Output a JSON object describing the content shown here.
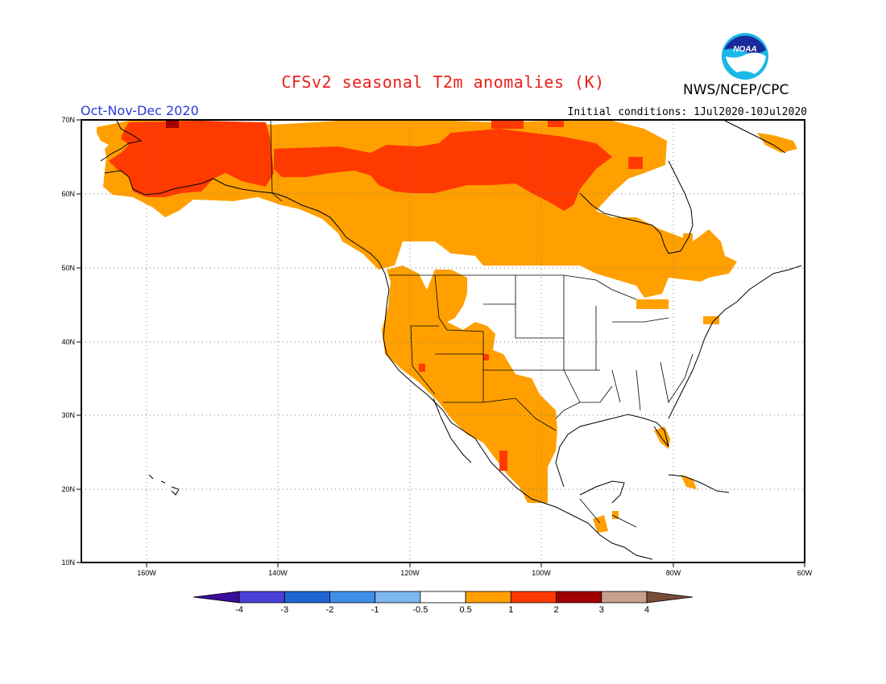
{
  "title": "CFSv2 seasonal T2m anomalies (K)",
  "organization": "NWS/NCEP/CPC",
  "logo_text": "NOAA",
  "season": "Oct-Nov-Dec 2020",
  "initial_conditions": "Initial conditions: 1Jul2020-10Jul2020",
  "map": {
    "lon_range": [
      -172,
      -60
    ],
    "lat_range": [
      10,
      70
    ],
    "grid": true,
    "lat_labels": [
      "70N",
      "60N",
      "50N",
      "40N",
      "30N",
      "20N",
      "10N"
    ],
    "lon_labels": [
      "160W",
      "140W",
      "120W",
      "100W",
      "80W",
      "60W"
    ]
  },
  "colorbar": {
    "labels": [
      "-4",
      "-3",
      "-2",
      "-1",
      "-0.5",
      "0.5",
      "1",
      "2",
      "3",
      "4"
    ],
    "colors": [
      "#3a0d9b",
      "#4a3fd6",
      "#1f66d4",
      "#3f8ee8",
      "#7db7ef",
      "#ffffff",
      "#ffa000",
      "#ff3a00",
      "#a00000",
      "#c8a08c",
      "#7a4a3a"
    ]
  },
  "anomaly_colors": {
    "0.5-1": "#ffa000",
    "1-2": "#ff3a00",
    "2-3": "#a00000"
  }
}
